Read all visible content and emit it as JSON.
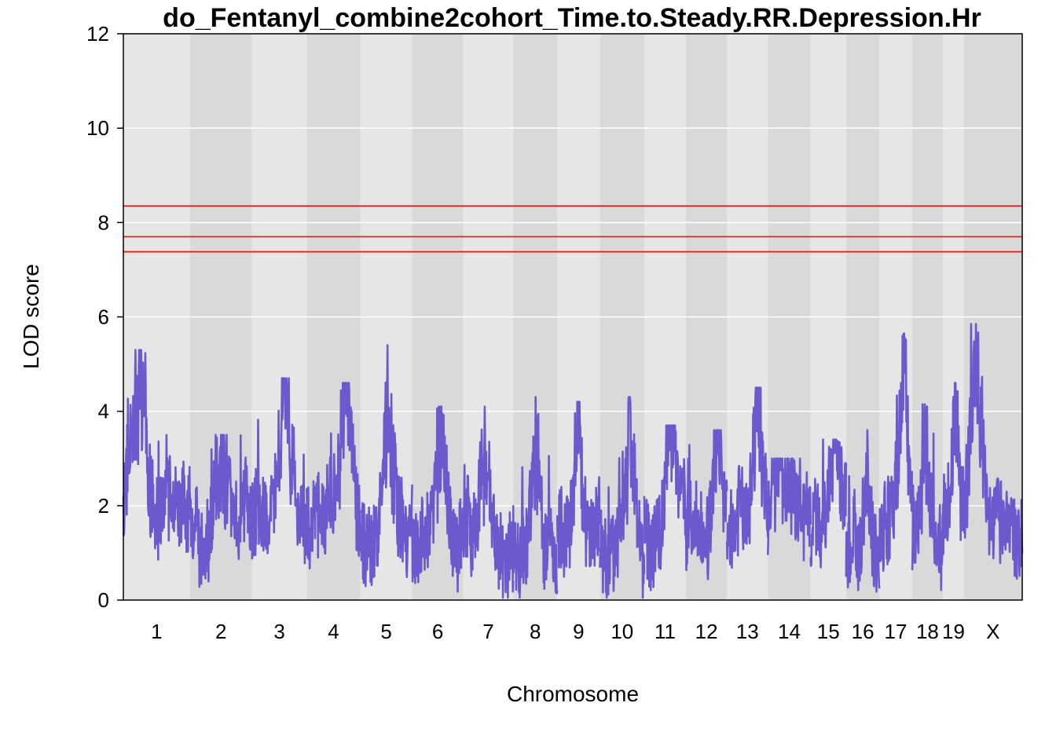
{
  "chart_data": {
    "type": "line",
    "title": "do_Fentanyl_combine2cohort_Time.to.Steady.RR.Depression.Hr",
    "xlabel": "Chromosome",
    "ylabel": "LOD score",
    "ylim": [
      0,
      12
    ],
    "yticks": [
      "0",
      "2",
      "4",
      "6",
      "8",
      "10",
      "12"
    ],
    "grid": true,
    "colors": {
      "line": "#6a5acd",
      "threshold": "#e3231c",
      "band_light": "#e6e6e6",
      "band_dark": "#d9d9d9",
      "gridline": "#ffffff"
    },
    "thresholds": [
      8.35,
      7.7,
      7.38
    ],
    "chromosomes": [
      {
        "name": "1",
        "start": 0,
        "end": 195,
        "peak": 5.3
      },
      {
        "name": "2",
        "start": 195,
        "end": 377,
        "peak": 3.5
      },
      {
        "name": "3",
        "start": 377,
        "end": 537,
        "peak": 4.7
      },
      {
        "name": "4",
        "start": 537,
        "end": 694,
        "peak": 4.6
      },
      {
        "name": "5",
        "start": 694,
        "end": 846,
        "peak": 5.4
      },
      {
        "name": "6",
        "start": 846,
        "end": 996,
        "peak": 4.1
      },
      {
        "name": "7",
        "start": 996,
        "end": 1142,
        "peak": 4.1
      },
      {
        "name": "8",
        "start": 1142,
        "end": 1271,
        "peak": 4.3
      },
      {
        "name": "9",
        "start": 1271,
        "end": 1396,
        "peak": 4.2
      },
      {
        "name": "10",
        "start": 1396,
        "end": 1526,
        "peak": 4.3
      },
      {
        "name": "11",
        "start": 1526,
        "end": 1648,
        "peak": 3.7
      },
      {
        "name": "12",
        "start": 1648,
        "end": 1768,
        "peak": 3.6
      },
      {
        "name": "13",
        "start": 1768,
        "end": 1888,
        "peak": 4.5
      },
      {
        "name": "14",
        "start": 1888,
        "end": 2013,
        "peak": 3.0
      },
      {
        "name": "15",
        "start": 2013,
        "end": 2117,
        "peak": 3.4
      },
      {
        "name": "16",
        "start": 2117,
        "end": 2215,
        "peak": 3.6
      },
      {
        "name": "17",
        "start": 2215,
        "end": 2310,
        "peak": 5.65
      },
      {
        "name": "18",
        "start": 2310,
        "end": 2401,
        "peak": 4.15
      },
      {
        "name": "19",
        "start": 2401,
        "end": 2462,
        "peak": 4.6
      },
      {
        "name": "X",
        "start": 2462,
        "end": 2633,
        "peak": 5.85
      }
    ]
  }
}
